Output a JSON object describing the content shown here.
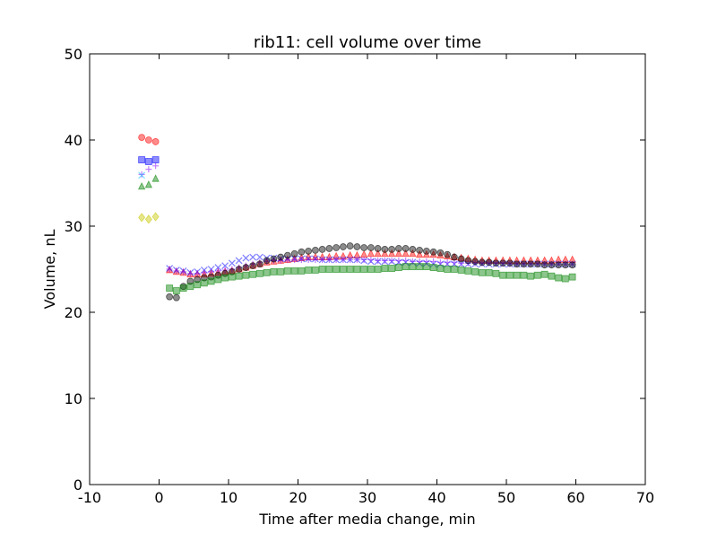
{
  "chart_data": {
    "type": "scatter",
    "title": "rib11: cell volume over time",
    "xlabel": "Time after media change, min",
    "ylabel": "Volume, nL",
    "xlim": [
      -10,
      70
    ],
    "ylim": [
      0,
      50
    ],
    "xticks": [
      -10,
      0,
      10,
      20,
      30,
      40,
      50,
      60,
      70
    ],
    "yticks": [
      0,
      10,
      20,
      30,
      40,
      50
    ],
    "grid": false,
    "legend": "none",
    "pre_change_series": [
      {
        "color": "#ff0000",
        "marker": "circle",
        "x": [
          -2.5,
          -1.5,
          -0.5
        ],
        "y": [
          40.3,
          40.0,
          39.8
        ]
      },
      {
        "color": "#0000ff",
        "marker": "square",
        "x": [
          -2.5,
          -1.5,
          -0.5
        ],
        "y": [
          37.7,
          37.5,
          37.7
        ]
      },
      {
        "color": "#7f00ff",
        "marker": "plus",
        "x": [
          -2.5,
          -1.5,
          -0.5
        ],
        "y": [
          36.0,
          36.6,
          37.0
        ]
      },
      {
        "color": "#00c0ff",
        "marker": "x",
        "x": [
          -2.5
        ],
        "y": [
          35.9
        ]
      },
      {
        "color": "#008000",
        "marker": "triangle",
        "x": [
          -2.5,
          -1.5,
          -0.5
        ],
        "y": [
          34.6,
          34.8,
          35.5
        ]
      },
      {
        "color": "#c8c800",
        "marker": "diamond",
        "x": [
          -2.5,
          -1.5,
          -0.5
        ],
        "y": [
          31.0,
          30.8,
          31.1
        ]
      }
    ],
    "x_post": [
      1.5,
      2.5,
      3.5,
      4.5,
      5.5,
      6.5,
      7.5,
      8.5,
      9.5,
      10.5,
      11.5,
      12.5,
      13.5,
      14.5,
      15.5,
      16.5,
      17.5,
      18.5,
      19.5,
      20.5,
      21.5,
      22.5,
      23.5,
      24.5,
      25.5,
      26.5,
      27.5,
      28.5,
      29.5,
      30.5,
      31.5,
      32.5,
      33.5,
      34.5,
      35.5,
      36.5,
      37.5,
      38.5,
      39.5,
      40.5,
      41.5,
      42.5,
      43.5,
      44.5,
      45.5,
      46.5,
      47.5,
      48.5,
      49.5,
      50.5,
      51.5,
      52.5,
      53.5,
      54.5,
      55.5,
      56.5,
      57.5,
      58.5,
      59.5
    ],
    "series": [
      {
        "color": "#ff0000",
        "marker": "triangle",
        "values": [
          24.9,
          24.7,
          24.6,
          24.4,
          24.4,
          24.4,
          24.5,
          24.6,
          24.7,
          24.8,
          25.0,
          25.2,
          25.4,
          25.6,
          25.8,
          25.9,
          26.0,
          26.1,
          26.2,
          26.3,
          26.4,
          26.4,
          26.4,
          26.4,
          26.5,
          26.5,
          26.6,
          26.6,
          26.7,
          26.8,
          26.8,
          26.8,
          26.8,
          26.8,
          26.8,
          26.8,
          26.7,
          26.7,
          26.7,
          26.6,
          26.5,
          26.4,
          26.3,
          26.2,
          26.1,
          26.0,
          26.0,
          26.0,
          26.0,
          26.0,
          26.0,
          26.0,
          26.0,
          26.0,
          26.0,
          26.0,
          26.1,
          26.1,
          26.1
        ]
      },
      {
        "color": "#0000ff",
        "marker": "x",
        "values": [
          25.1,
          24.9,
          24.8,
          24.6,
          24.7,
          24.9,
          25.0,
          25.2,
          25.4,
          25.7,
          26.0,
          26.3,
          26.4,
          26.4,
          26.3,
          26.3,
          26.2,
          26.2,
          26.2,
          26.2,
          26.2,
          26.2,
          26.1,
          26.1,
          26.1,
          26.1,
          26.1,
          26.1,
          26.0,
          25.9,
          25.9,
          25.9,
          25.9,
          25.8,
          25.8,
          25.8,
          25.7,
          25.7,
          25.6,
          25.6,
          25.6,
          25.6,
          25.6,
          25.6,
          25.6,
          25.6,
          25.6,
          25.6,
          25.6,
          25.6,
          25.6,
          25.6,
          25.6,
          25.6,
          25.6,
          25.6,
          25.6,
          25.6,
          25.6
        ]
      },
      {
        "color": "#7f00ff",
        "marker": "plus",
        "values": [
          25.0,
          24.8,
          24.7,
          24.5,
          24.5,
          24.6,
          24.7,
          24.8,
          24.9,
          25.0,
          25.2,
          25.4,
          25.6,
          25.8,
          25.9,
          26.0,
          26.0,
          26.1,
          26.1,
          26.1,
          26.1,
          26.1,
          26.1,
          26.1,
          26.1,
          26.1,
          26.1,
          26.1,
          26.1,
          26.1,
          26.0,
          26.0,
          26.0,
          26.0,
          26.0,
          25.9,
          25.9,
          25.9,
          25.9,
          25.8,
          25.8,
          25.8,
          25.7,
          25.7,
          25.7,
          25.7,
          25.7,
          25.7,
          25.7,
          25.6,
          25.6,
          25.6,
          25.6,
          25.6,
          25.6,
          25.6,
          25.6,
          25.6,
          25.6
        ]
      },
      {
        "color": "#000000",
        "marker": "circle",
        "values": [
          21.8,
          21.7,
          23.0,
          23.6,
          23.8,
          24.0,
          24.1,
          24.3,
          24.5,
          24.7,
          25.0,
          25.2,
          25.4,
          25.6,
          26.0,
          26.2,
          26.4,
          26.6,
          26.8,
          27.0,
          27.1,
          27.2,
          27.3,
          27.4,
          27.5,
          27.6,
          27.7,
          27.6,
          27.5,
          27.5,
          27.4,
          27.3,
          27.3,
          27.4,
          27.4,
          27.3,
          27.2,
          27.1,
          27.0,
          26.9,
          26.7,
          26.4,
          26.2,
          26.0,
          25.9,
          25.8,
          25.8,
          25.7,
          25.7,
          25.7,
          25.6,
          25.6,
          25.6,
          25.6,
          25.5,
          25.5,
          25.5,
          25.5,
          25.5
        ]
      },
      {
        "color": "#008000",
        "marker": "square",
        "values": [
          22.8,
          22.5,
          22.8,
          23.0,
          23.2,
          23.4,
          23.6,
          23.8,
          24.0,
          24.1,
          24.2,
          24.3,
          24.4,
          24.5,
          24.6,
          24.7,
          24.7,
          24.8,
          24.8,
          24.8,
          24.9,
          24.9,
          25.0,
          25.0,
          25.0,
          25.0,
          25.0,
          25.0,
          25.0,
          25.0,
          25.0,
          25.1,
          25.1,
          25.2,
          25.3,
          25.3,
          25.3,
          25.3,
          25.2,
          25.1,
          25.0,
          25.0,
          24.9,
          24.8,
          24.7,
          24.6,
          24.6,
          24.5,
          24.3,
          24.3,
          24.3,
          24.3,
          24.2,
          24.3,
          24.4,
          24.2,
          24.0,
          23.9,
          24.1
        ]
      }
    ]
  }
}
